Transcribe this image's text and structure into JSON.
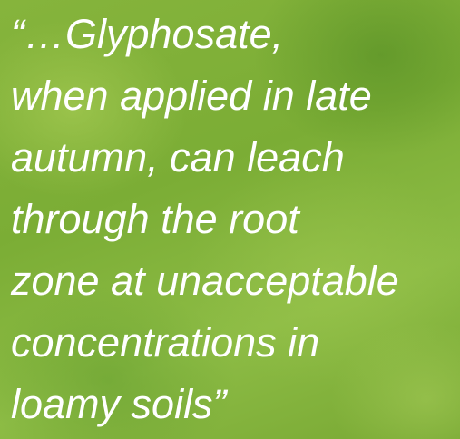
{
  "quote": {
    "lines": [
      "“…Glyphosate,",
      "when applied in late",
      "autumn, can leach",
      "through the root",
      "zone at unacceptable",
      "concentrations in",
      "loamy soils”"
    ]
  }
}
